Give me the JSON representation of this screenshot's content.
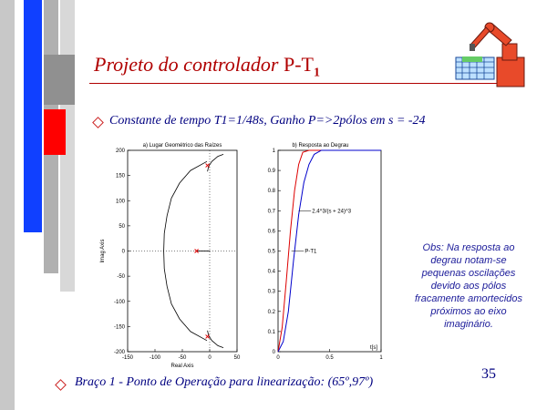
{
  "slide": {
    "title_italic": "Projeto do controlador",
    "title_rest": " P-T",
    "title_sub": "1",
    "bullet1": "Constante de tempo T1=1/48s, Ganho P=>2pólos em s = -24",
    "bullet2": "Braço 1 - Ponto de Operação para linearização: (65º,97º)",
    "obs": "Obs: Na resposta ao degrau notam-se pequenas oscilações devido aos pólos fracamente amortecidos próximos ao eixo imaginário.",
    "page_number": "35"
  },
  "colors": {
    "title": "#b00000",
    "bullets": "#000080",
    "obs": "#1a1a99",
    "accent_red": "#ff0000",
    "accent_blue": "#0000ff"
  },
  "chart_data": [
    {
      "type": "line",
      "title": "a) Lugar Geométrico das Raízes",
      "xlabel": "Real Axis",
      "ylabel": "Imag Axis",
      "xlim": [
        -150,
        50
      ],
      "ylim": [
        -200,
        200
      ],
      "xticks": [
        "-150",
        "-100",
        "-50",
        "0",
        "50"
      ],
      "yticks": [
        "200",
        "150",
        "100",
        "50",
        "0",
        "-50",
        "-100",
        "-150",
        "-200"
      ],
      "series": [
        {
          "values": [
            [
              -5,
              178
            ],
            [
              -35,
              160
            ],
            [
              -55,
              135
            ],
            [
              -70,
              105
            ],
            [
              -78,
              70
            ],
            [
              -83,
              35
            ],
            [
              -84,
              0
            ],
            [
              -83,
              -35
            ],
            [
              -78,
              -70
            ],
            [
              -70,
              -105
            ],
            [
              -55,
              -135
            ],
            [
              -35,
              -160
            ],
            [
              -5,
              -178
            ]
          ]
        },
        {
          "values": [
            [
              -24,
              0
            ],
            [
              -5,
              0
            ],
            [
              0,
              0
            ]
          ]
        },
        {
          "values": [
            [
              -4,
              158
            ],
            [
              -2,
              168
            ],
            [
              4,
              178
            ],
            [
              15,
              188
            ],
            [
              25,
              192
            ]
          ]
        },
        {
          "values": [
            [
              -4,
              -158
            ],
            [
              -2,
              -168
            ],
            [
              4,
              -178
            ],
            [
              15,
              -188
            ],
            [
              25,
              -192
            ]
          ]
        }
      ],
      "poles": [
        [
          -4,
          170
        ],
        [
          -4,
          -170
        ],
        [
          -24,
          0
        ]
      ]
    },
    {
      "type": "line",
      "title": "b) Resposta ao Degrau",
      "xlabel": "t[s]",
      "xlim": [
        0,
        1
      ],
      "ylim": [
        0,
        1
      ],
      "xticks": [
        "0",
        "0.5",
        "1"
      ],
      "yticks": [
        "1",
        "0.9",
        "0.8",
        "0.7",
        "0.6",
        "0.5",
        "0.4",
        "0.3",
        "0.2",
        "0.1",
        "0"
      ],
      "annotations": [
        "2.4^3/(s + 24)^3",
        "P-T1"
      ],
      "series": [
        {
          "name": "P-T1",
          "color": "#dd0000",
          "values": [
            [
              0,
              0
            ],
            [
              0.04,
              0.12
            ],
            [
              0.08,
              0.35
            ],
            [
              0.12,
              0.6
            ],
            [
              0.16,
              0.8
            ],
            [
              0.2,
              0.93
            ],
            [
              0.24,
              0.99
            ],
            [
              0.3,
              1.0
            ],
            [
              1,
              1.0
            ]
          ]
        },
        {
          "name": "2.4^3/(s + 24)^3",
          "color": "#0000cc",
          "values": [
            [
              0,
              0
            ],
            [
              0.05,
              0.05
            ],
            [
              0.1,
              0.2
            ],
            [
              0.15,
              0.45
            ],
            [
              0.2,
              0.68
            ],
            [
              0.25,
              0.84
            ],
            [
              0.3,
              0.93
            ],
            [
              0.35,
              0.98
            ],
            [
              0.42,
              1.0
            ],
            [
              1,
              1.0
            ]
          ]
        }
      ]
    }
  ]
}
